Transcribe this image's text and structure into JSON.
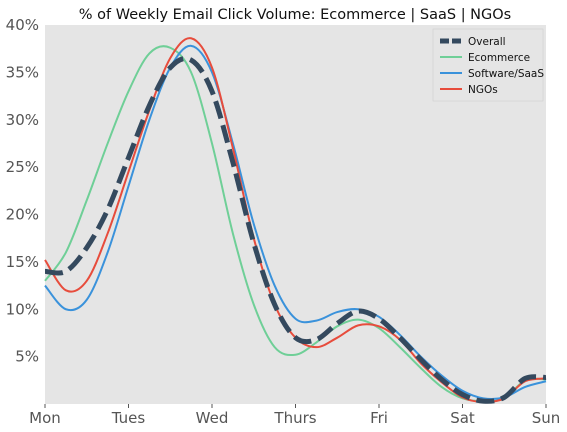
{
  "chart_data": {
    "type": "line",
    "title": "% of Weekly Email Click Volume: Ecommerce | SaaS | NGOs",
    "xlabel": "",
    "ylabel": "",
    "x_ticks": [
      "Mon",
      "Tues",
      "Wed",
      "Thurs",
      "Fri",
      "Sat",
      "Sun"
    ],
    "y_ticks": [
      "5%",
      "10%",
      "15%",
      "20%",
      "25%",
      "30%",
      "35%",
      "40%"
    ],
    "xlim": [
      0,
      6
    ],
    "ylim": [
      0,
      40
    ],
    "grid": false,
    "legend_position": "top-right",
    "series": [
      {
        "name": "Overall",
        "color": "#34495e",
        "dashed": true,
        "x": [
          0,
          0.25,
          0.5,
          0.75,
          1.0,
          1.25,
          1.5,
          1.75,
          2.0,
          2.25,
          2.5,
          2.75,
          3.0,
          3.25,
          3.5,
          3.75,
          4.0,
          4.25,
          4.5,
          4.75,
          5.0,
          5.25,
          5.5,
          5.75,
          6.0
        ],
        "values": [
          14.0,
          14.0,
          16.5,
          20.5,
          26.0,
          31.5,
          35.5,
          36.3,
          33.0,
          25.5,
          17.0,
          10.5,
          7.0,
          6.8,
          8.5,
          9.8,
          9.0,
          7.0,
          4.7,
          2.6,
          1.0,
          0.3,
          0.7,
          2.7,
          2.8
        ]
      },
      {
        "name": "Ecommerce",
        "color": "#6fcf97",
        "dashed": false,
        "x": [
          0,
          0.25,
          0.5,
          0.75,
          1.0,
          1.25,
          1.5,
          1.75,
          2.0,
          2.25,
          2.5,
          2.75,
          3.0,
          3.25,
          3.5,
          3.75,
          4.0,
          4.25,
          4.5,
          4.75,
          5.0,
          5.25,
          5.5,
          5.75,
          6.0
        ],
        "values": [
          13.0,
          16.0,
          21.5,
          27.5,
          33.0,
          37.0,
          37.6,
          35.0,
          27.5,
          18.0,
          10.5,
          6.0,
          5.2,
          6.5,
          8.2,
          8.9,
          8.0,
          6.0,
          3.8,
          1.8,
          0.6,
          0.3,
          0.6,
          2.5,
          2.6
        ]
      },
      {
        "name": "Software/SaaS",
        "color": "#3a92db",
        "dashed": false,
        "x": [
          0,
          0.25,
          0.5,
          0.75,
          1.0,
          1.25,
          1.5,
          1.75,
          2.0,
          2.25,
          2.5,
          2.75,
          3.0,
          3.25,
          3.5,
          3.75,
          4.0,
          4.25,
          4.5,
          4.75,
          5.0,
          5.25,
          5.5,
          5.75,
          6.0
        ],
        "values": [
          12.5,
          10.0,
          11.0,
          16.0,
          23.0,
          30.0,
          35.5,
          37.8,
          35.0,
          27.5,
          19.0,
          12.5,
          9.0,
          8.8,
          9.7,
          10.0,
          9.2,
          7.3,
          5.0,
          3.0,
          1.4,
          0.6,
          0.7,
          1.8,
          2.4
        ]
      },
      {
        "name": "NGOs",
        "color": "#e74c3c",
        "dashed": false,
        "x": [
          0,
          0.25,
          0.5,
          0.75,
          1.0,
          1.25,
          1.5,
          1.75,
          2.0,
          2.25,
          2.5,
          2.75,
          3.0,
          3.25,
          3.5,
          3.75,
          4.0,
          4.25,
          4.5,
          4.75,
          5.0,
          5.25,
          5.5,
          5.75,
          6.0
        ],
        "values": [
          15.2,
          12.0,
          13.0,
          18.0,
          24.5,
          31.0,
          36.5,
          38.6,
          35.5,
          27.0,
          17.5,
          10.5,
          7.0,
          6.0,
          7.0,
          8.3,
          8.2,
          6.8,
          4.3,
          2.3,
          0.7,
          0.2,
          0.6,
          2.4,
          2.7
        ]
      }
    ]
  }
}
